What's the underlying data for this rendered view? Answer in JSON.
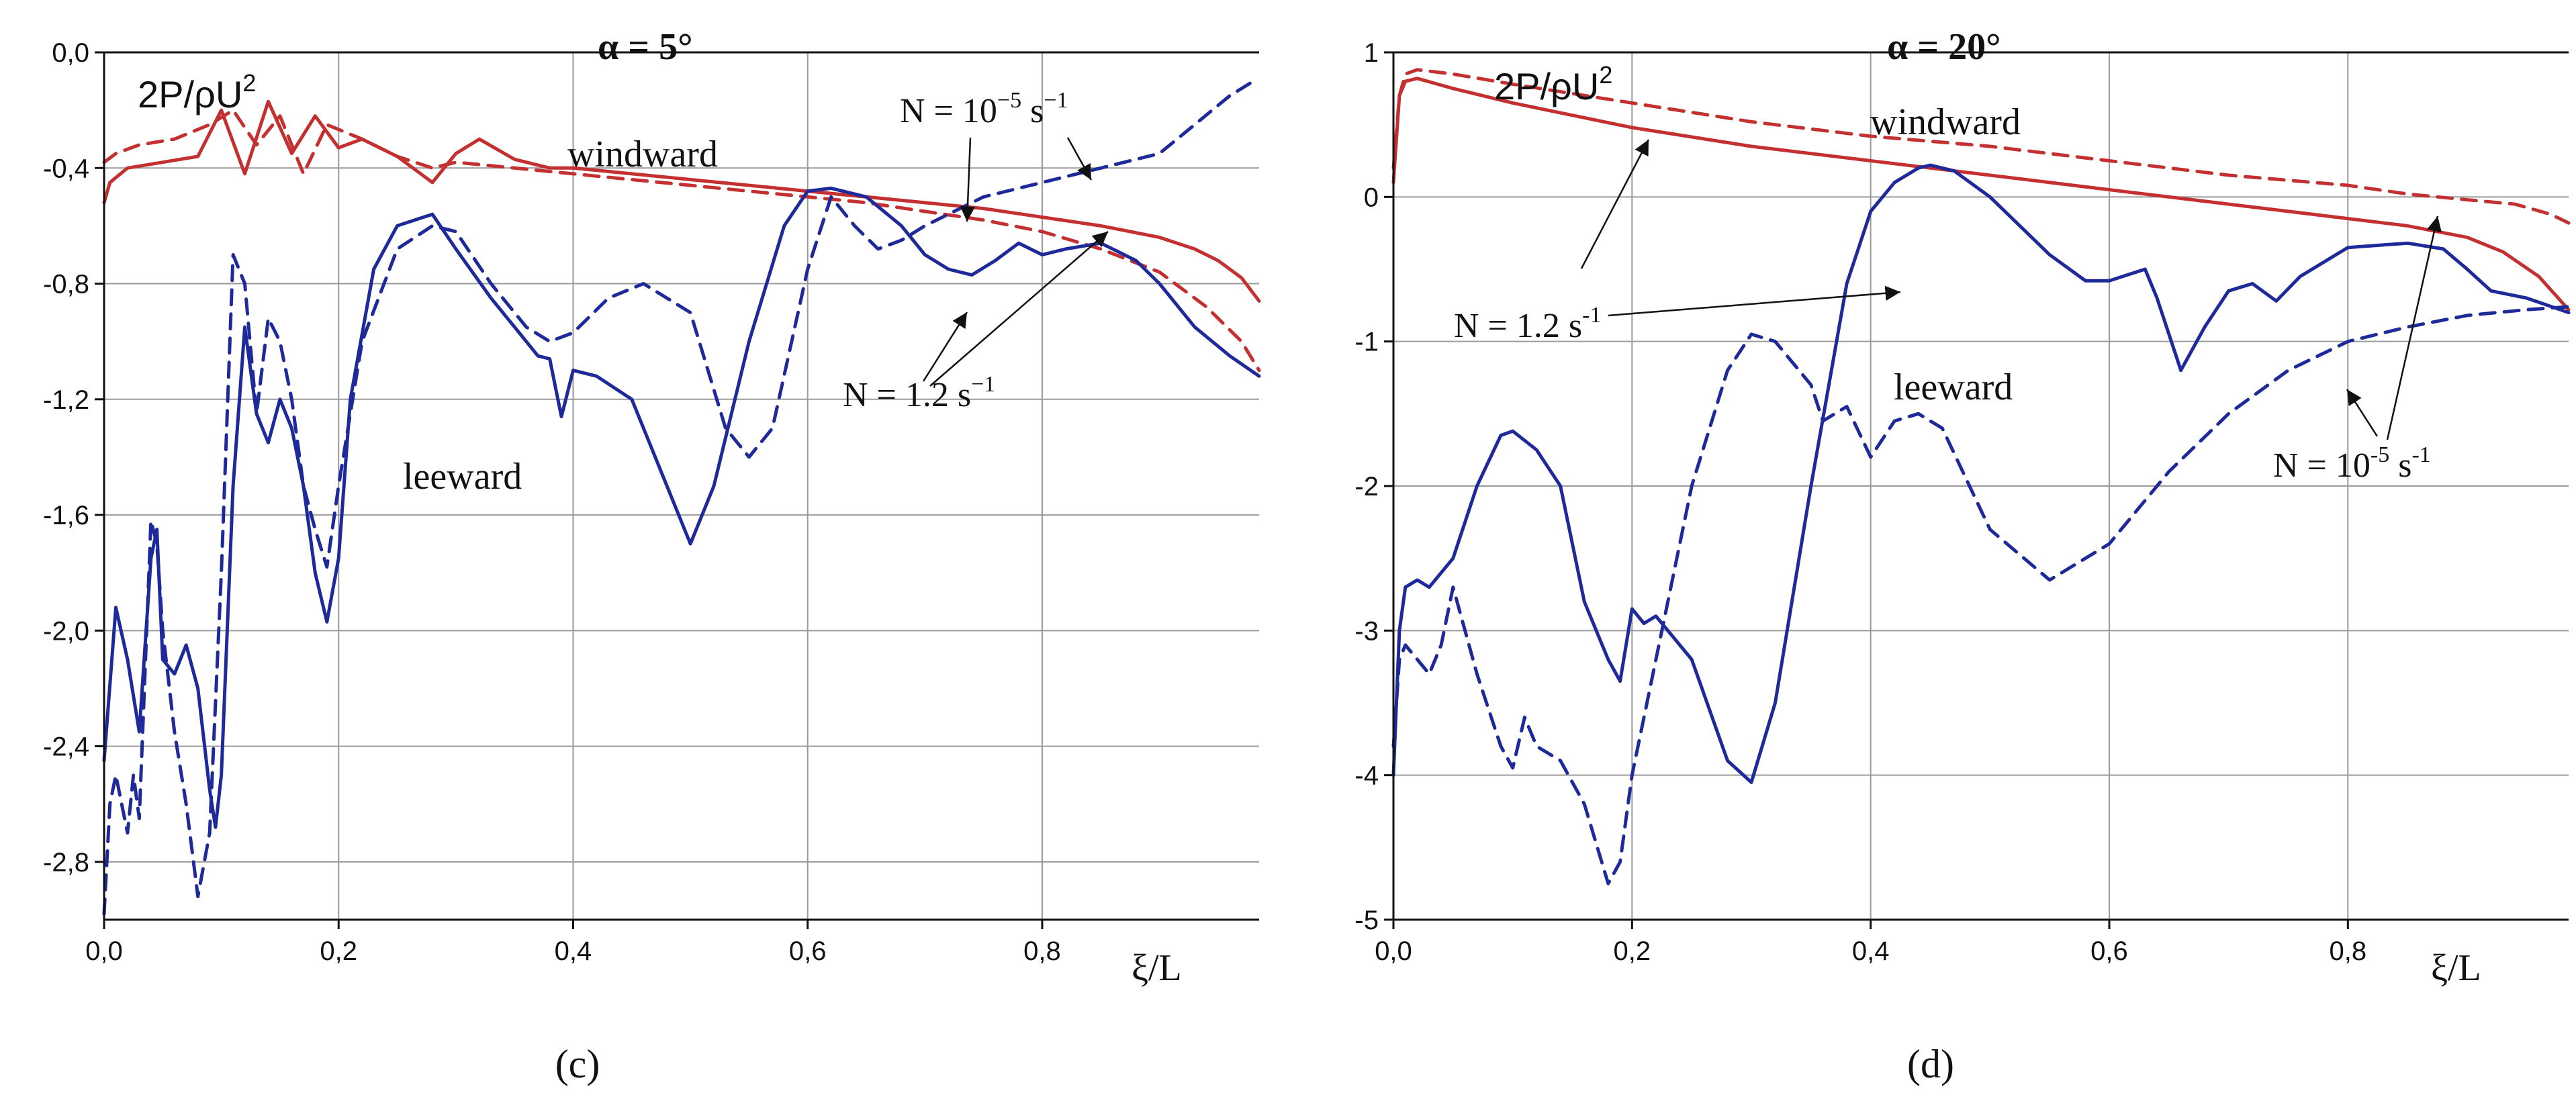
{
  "chart_data": [
    {
      "type": "line",
      "title": "α = 5°",
      "panel_label": "(c)",
      "ylabel": "2P/ρU²",
      "xlabel": "ξ/L",
      "xlim": [
        0,
        0.985
      ],
      "ylim": [
        -3.0,
        0.0
      ],
      "x_ticks": [
        "0,0",
        "0,2",
        "0,4",
        "0,6",
        "0,8"
      ],
      "x_tick_values": [
        0,
        0.2,
        0.4,
        0.6,
        0.8
      ],
      "y_ticks": [
        "0,0",
        "-0,4",
        "-0,8",
        "-1,2",
        "-1,6",
        "-2,0",
        "-2,4",
        "-2,8"
      ],
      "y_tick_values": [
        0,
        -0.4,
        -0.8,
        -1.2,
        -1.6,
        -2.0,
        -2.4,
        -2.8
      ],
      "grid": true,
      "series": [
        {
          "name": "windward, N = 1.2 s⁻¹",
          "style": "solid",
          "color": "#c43030",
          "x": [
            0,
            0.005,
            0.02,
            0.05,
            0.08,
            0.1,
            0.12,
            0.14,
            0.16,
            0.18,
            0.2,
            0.22,
            0.25,
            0.27,
            0.28,
            0.3,
            0.32,
            0.35,
            0.38,
            0.4,
            0.45,
            0.5,
            0.55,
            0.6,
            0.65,
            0.7,
            0.75,
            0.8,
            0.85,
            0.9,
            0.93,
            0.95,
            0.97,
            0.985
          ],
          "y": [
            -0.52,
            -0.45,
            -0.4,
            -0.38,
            -0.36,
            -0.2,
            -0.42,
            -0.17,
            -0.35,
            -0.22,
            -0.33,
            -0.3,
            -0.36,
            -0.42,
            -0.45,
            -0.35,
            -0.3,
            -0.37,
            -0.4,
            -0.4,
            -0.42,
            -0.44,
            -0.46,
            -0.48,
            -0.5,
            -0.52,
            -0.54,
            -0.57,
            -0.6,
            -0.64,
            -0.68,
            -0.72,
            -0.78,
            -0.86
          ]
        },
        {
          "name": "windward, N = 10⁻⁵ s⁻¹",
          "style": "dashed",
          "color": "#c43030",
          "x": [
            0,
            0.01,
            0.03,
            0.06,
            0.09,
            0.11,
            0.13,
            0.15,
            0.17,
            0.19,
            0.22,
            0.25,
            0.28,
            0.3,
            0.35,
            0.4,
            0.45,
            0.5,
            0.55,
            0.6,
            0.65,
            0.7,
            0.75,
            0.8,
            0.85,
            0.9,
            0.94,
            0.97,
            0.985
          ],
          "y": [
            -0.38,
            -0.35,
            -0.32,
            -0.3,
            -0.25,
            -0.2,
            -0.32,
            -0.22,
            -0.42,
            -0.25,
            -0.3,
            -0.36,
            -0.4,
            -0.38,
            -0.4,
            -0.42,
            -0.44,
            -0.46,
            -0.48,
            -0.5,
            -0.52,
            -0.55,
            -0.58,
            -0.62,
            -0.68,
            -0.76,
            -0.88,
            -1.0,
            -1.1
          ]
        },
        {
          "name": "leeward, N = 1.2 s⁻¹",
          "style": "solid",
          "color": "#1f2a9a",
          "x": [
            0,
            0.01,
            0.02,
            0.03,
            0.04,
            0.045,
            0.05,
            0.06,
            0.07,
            0.08,
            0.09,
            0.095,
            0.1,
            0.11,
            0.12,
            0.13,
            0.14,
            0.15,
            0.16,
            0.17,
            0.18,
            0.19,
            0.2,
            0.21,
            0.23,
            0.25,
            0.28,
            0.3,
            0.33,
            0.35,
            0.37,
            0.38,
            0.39,
            0.4,
            0.42,
            0.45,
            0.48,
            0.5,
            0.52,
            0.55,
            0.58,
            0.6,
            0.62,
            0.65,
            0.68,
            0.7,
            0.72,
            0.74,
            0.76,
            0.78,
            0.8,
            0.82,
            0.85,
            0.88,
            0.9,
            0.93,
            0.96,
            0.985
          ],
          "y": [
            -2.45,
            -1.92,
            -2.1,
            -2.35,
            -1.75,
            -1.65,
            -2.1,
            -2.15,
            -2.05,
            -2.2,
            -2.55,
            -2.68,
            -2.5,
            -1.5,
            -0.95,
            -1.25,
            -1.35,
            -1.2,
            -1.3,
            -1.5,
            -1.8,
            -1.97,
            -1.75,
            -1.2,
            -0.75,
            -0.6,
            -0.56,
            -0.68,
            -0.85,
            -0.95,
            -1.05,
            -1.06,
            -1.26,
            -1.1,
            -1.12,
            -1.2,
            -1.5,
            -1.7,
            -1.5,
            -1.0,
            -0.6,
            -0.48,
            -0.47,
            -0.5,
            -0.6,
            -0.7,
            -0.75,
            -0.77,
            -0.72,
            -0.66,
            -0.7,
            -0.68,
            -0.66,
            -0.72,
            -0.8,
            -0.95,
            -1.05,
            -1.12
          ]
        },
        {
          "name": "leeward, N = 10⁻⁵ s⁻¹",
          "style": "dashed",
          "color": "#1f2a9a",
          "x": [
            0,
            0.005,
            0.01,
            0.02,
            0.025,
            0.03,
            0.04,
            0.045,
            0.05,
            0.06,
            0.07,
            0.08,
            0.09,
            0.1,
            0.11,
            0.12,
            0.13,
            0.14,
            0.15,
            0.16,
            0.17,
            0.18,
            0.19,
            0.2,
            0.22,
            0.25,
            0.28,
            0.3,
            0.33,
            0.36,
            0.38,
            0.4,
            0.43,
            0.46,
            0.5,
            0.53,
            0.55,
            0.57,
            0.6,
            0.62,
            0.64,
            0.66,
            0.68,
            0.7,
            0.75,
            0.8,
            0.85,
            0.9,
            0.93,
            0.96,
            0.98
          ],
          "y": [
            -2.98,
            -2.6,
            -2.5,
            -2.7,
            -2.5,
            -2.65,
            -1.62,
            -1.7,
            -2.0,
            -2.35,
            -2.6,
            -2.92,
            -2.7,
            -1.8,
            -0.7,
            -0.8,
            -1.25,
            -0.92,
            -1.0,
            -1.2,
            -1.5,
            -1.65,
            -1.78,
            -1.5,
            -1.0,
            -0.68,
            -0.6,
            -0.62,
            -0.8,
            -0.95,
            -1.0,
            -0.97,
            -0.85,
            -0.8,
            -0.9,
            -1.3,
            -1.4,
            -1.3,
            -0.75,
            -0.5,
            -0.6,
            -0.68,
            -0.65,
            -0.6,
            -0.5,
            -0.45,
            -0.4,
            -0.35,
            -0.25,
            -0.15,
            -0.1
          ]
        }
      ],
      "annotations": [
        "windward",
        "leeward",
        "N = 10⁻⁵ s⁻¹",
        "N = 1.2 s⁻¹"
      ]
    },
    {
      "type": "line",
      "title": "α = 20°",
      "panel_label": "(d)",
      "ylabel": "2P/ρU²",
      "xlabel": "ξ/L",
      "xlim": [
        0,
        0.985
      ],
      "ylim": [
        -5,
        1
      ],
      "x_ticks": [
        "0,0",
        "0,2",
        "0,4",
        "0,6",
        "0,8"
      ],
      "x_tick_values": [
        0,
        0.2,
        0.4,
        0.6,
        0.8
      ],
      "y_ticks": [
        "1",
        "0",
        "-1",
        "-2",
        "-3",
        "-4",
        "-5"
      ],
      "y_tick_values": [
        1,
        0,
        -1,
        -2,
        -3,
        -4,
        -5
      ],
      "grid": true,
      "series": [
        {
          "name": "windward, N = 1.2 s⁻¹",
          "style": "solid",
          "color": "#c43030",
          "x": [
            0,
            0.005,
            0.01,
            0.02,
            0.05,
            0.1,
            0.2,
            0.3,
            0.4,
            0.5,
            0.6,
            0.7,
            0.8,
            0.85,
            0.9,
            0.93,
            0.96,
            0.985
          ],
          "y": [
            0.1,
            0.7,
            0.8,
            0.82,
            0.75,
            0.65,
            0.48,
            0.35,
            0.25,
            0.15,
            0.05,
            -0.05,
            -0.15,
            -0.2,
            -0.28,
            -0.38,
            -0.55,
            -0.78
          ]
        },
        {
          "name": "windward, N = 10⁻⁵ s⁻¹",
          "style": "dashed",
          "color": "#c43030",
          "x": [
            0,
            0.005,
            0.01,
            0.02,
            0.05,
            0.1,
            0.2,
            0.3,
            0.4,
            0.5,
            0.6,
            0.7,
            0.8,
            0.85,
            0.9,
            0.94,
            0.97,
            0.985
          ],
          "y": [
            0.2,
            0.7,
            0.85,
            0.88,
            0.85,
            0.78,
            0.65,
            0.52,
            0.42,
            0.35,
            0.25,
            0.15,
            0.08,
            0.02,
            -0.02,
            -0.05,
            -0.12,
            -0.18
          ]
        },
        {
          "name": "leeward, N = 1.2 s⁻¹",
          "style": "solid",
          "color": "#1f2a9a",
          "x": [
            0,
            0.005,
            0.01,
            0.02,
            0.03,
            0.05,
            0.07,
            0.09,
            0.1,
            0.12,
            0.14,
            0.16,
            0.18,
            0.19,
            0.2,
            0.21,
            0.22,
            0.25,
            0.28,
            0.3,
            0.32,
            0.35,
            0.38,
            0.4,
            0.42,
            0.44,
            0.45,
            0.47,
            0.5,
            0.55,
            0.58,
            0.6,
            0.63,
            0.64,
            0.66,
            0.68,
            0.7,
            0.72,
            0.74,
            0.76,
            0.8,
            0.85,
            0.88,
            0.9,
            0.92,
            0.95,
            0.985
          ],
          "y": [
            -4.0,
            -3.0,
            -2.7,
            -2.65,
            -2.7,
            -2.5,
            -2.0,
            -1.65,
            -1.62,
            -1.75,
            -2.0,
            -2.8,
            -3.2,
            -3.35,
            -2.85,
            -2.95,
            -2.9,
            -3.2,
            -3.9,
            -4.05,
            -3.5,
            -2.0,
            -0.6,
            -0.1,
            0.1,
            0.2,
            0.22,
            0.18,
            0.0,
            -0.4,
            -0.58,
            -0.58,
            -0.5,
            -0.7,
            -1.2,
            -0.9,
            -0.65,
            -0.6,
            -0.72,
            -0.55,
            -0.35,
            -0.32,
            -0.36,
            -0.5,
            -0.65,
            -0.7,
            -0.8
          ]
        },
        {
          "name": "leeward, N = 10⁻⁵ s⁻¹",
          "style": "dashed",
          "color": "#1f2a9a",
          "x": [
            0,
            0.005,
            0.01,
            0.02,
            0.03,
            0.04,
            0.05,
            0.07,
            0.09,
            0.1,
            0.11,
            0.12,
            0.14,
            0.16,
            0.18,
            0.19,
            0.2,
            0.22,
            0.25,
            0.28,
            0.3,
            0.32,
            0.35,
            0.36,
            0.37,
            0.38,
            0.4,
            0.42,
            0.44,
            0.46,
            0.5,
            0.55,
            0.6,
            0.65,
            0.7,
            0.75,
            0.8,
            0.85,
            0.9,
            0.95,
            0.985
          ],
          "y": [
            -3.8,
            -3.2,
            -3.1,
            -3.2,
            -3.3,
            -3.1,
            -2.7,
            -3.3,
            -3.8,
            -3.95,
            -3.6,
            -3.8,
            -3.9,
            -4.2,
            -4.75,
            -4.6,
            -4.0,
            -3.2,
            -2.0,
            -1.2,
            -0.95,
            -1.0,
            -1.3,
            -1.55,
            -1.5,
            -1.45,
            -1.8,
            -1.55,
            -1.5,
            -1.6,
            -2.3,
            -2.65,
            -2.4,
            -1.9,
            -1.5,
            -1.2,
            -1.0,
            -0.9,
            -0.82,
            -0.78,
            -0.76
          ]
        }
      ],
      "annotations": [
        "windward",
        "leeward",
        "N = 1.2 s⁻¹",
        "N = 10⁻⁵ s⁻¹"
      ]
    }
  ],
  "labels": {
    "c": {
      "ylabel_base": "2P/ρU",
      "ylabel_sup": "2",
      "windward": "windward",
      "leeward": "leeward",
      "n_low_base": "N = 10",
      "n_low_exp": "−5",
      "n_low_unit": " s",
      "n_low_unit_exp": "−1",
      "n_high_base": "N = 1.2 s",
      "n_high_exp": "−1",
      "xlabel": "ξ/L",
      "title": "α = 5°",
      "panel_label": "(c)"
    },
    "d": {
      "ylabel_base": "2P/ρU",
      "ylabel_sup": "2",
      "windward": "windward",
      "leeward": "leeward",
      "n_low_base": "N = 10",
      "n_low_exp": "-5",
      "n_low_unit": " s",
      "n_low_unit_exp": "-1",
      "n_high_base": "N = 1.2 s",
      "n_high_exp": "-1",
      "xlabel": "ξ/L",
      "title": "α = 20°",
      "panel_label": "(d)"
    }
  }
}
